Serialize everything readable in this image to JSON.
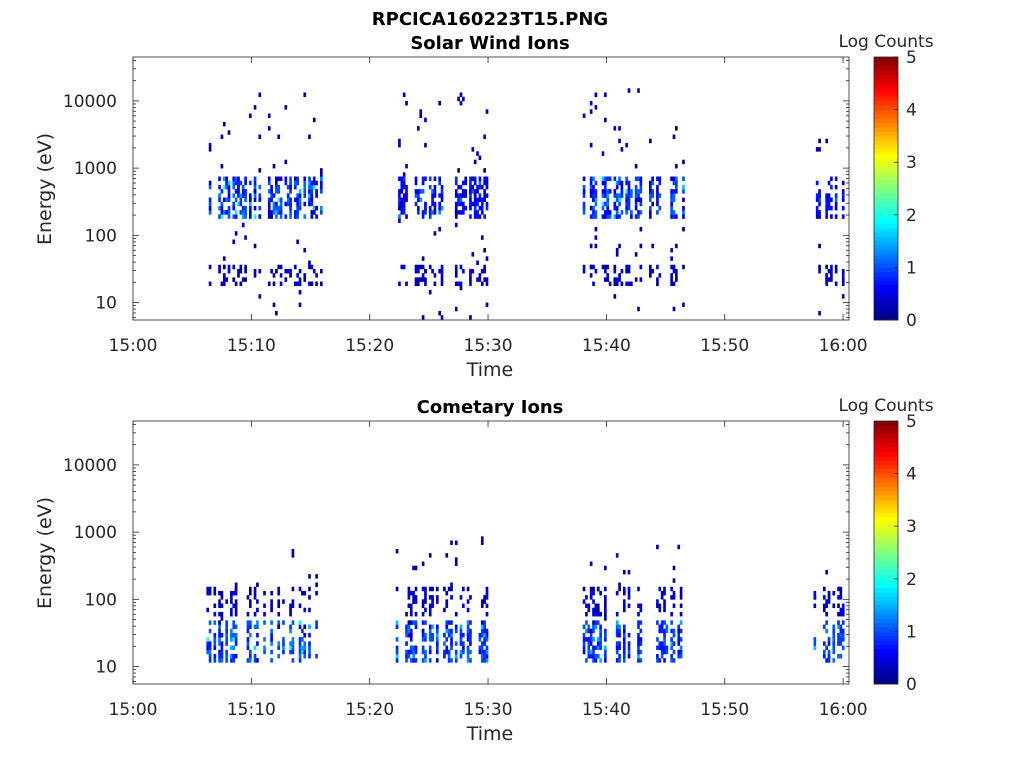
{
  "figure_title": "RPCICA160223T15.PNG",
  "chart_data": [
    {
      "type": "heatmap",
      "title": "Solar Wind Ions",
      "xlabel": "Time",
      "ylabel": "Energy (eV)",
      "x_ticks": [
        "15:00",
        "15:10",
        "15:20",
        "15:30",
        "15:40",
        "15:50",
        "16:00"
      ],
      "x_range_minutes": [
        0,
        60.5
      ],
      "y_ticks": [
        "10",
        "100",
        "1000",
        "10000"
      ],
      "y_scale": "log",
      "y_range": [
        5.5,
        45000
      ],
      "colorbar": {
        "label": "Log Counts",
        "ticks": [
          "0",
          "1",
          "2",
          "3",
          "4",
          "5"
        ],
        "range": [
          0,
          5
        ],
        "colormap": "jet"
      },
      "bursts": [
        {
          "t": [
            6.2,
            15.8
          ],
          "core_energy": [
            200,
            700
          ],
          "core_level": [
            0.4,
            2.1
          ],
          "sparse_energy": [
            6,
            12000
          ],
          "low_energy": [
            20,
            35
          ]
        },
        {
          "t": [
            22,
            29.9
          ],
          "core_energy": [
            200,
            700
          ],
          "core_level": [
            0.4,
            1.4
          ],
          "sparse_energy": [
            6,
            12000
          ],
          "low_energy": [
            20,
            35
          ]
        },
        {
          "t": [
            38,
            46.8
          ],
          "core_energy": [
            200,
            700
          ],
          "core_level": [
            0.4,
            2.0
          ],
          "sparse_energy": [
            6,
            15000
          ],
          "low_energy": [
            20,
            35
          ]
        },
        {
          "t": [
            57.5,
            60.5
          ],
          "core_energy": [
            200,
            700
          ],
          "core_level": [
            0.4,
            1.2
          ],
          "sparse_energy": [
            6,
            6000
          ],
          "low_energy": [
            20,
            35
          ]
        }
      ]
    },
    {
      "type": "heatmap",
      "title": "Cometary Ions",
      "xlabel": "Time",
      "ylabel": "Energy (eV)",
      "x_ticks": [
        "15:00",
        "15:10",
        "15:20",
        "15:30",
        "15:40",
        "15:50",
        "16:00"
      ],
      "x_range_minutes": [
        0,
        60.5
      ],
      "y_ticks": [
        "10",
        "100",
        "1000",
        "10000"
      ],
      "y_scale": "log",
      "y_range": [
        5.5,
        45000
      ],
      "colorbar": {
        "label": "Log Counts",
        "ticks": [
          "0",
          "1",
          "2",
          "3",
          "4",
          "5"
        ],
        "range": [
          0,
          5
        ],
        "colormap": "jet"
      },
      "bursts": [
        {
          "t": [
            6.2,
            15.5
          ],
          "core_energy": [
            12,
            45
          ],
          "core_level": [
            0.6,
            2.1
          ],
          "sparse_energy": [
            30,
            600
          ],
          "low_energy": [
            60,
            150
          ]
        },
        {
          "t": [
            22,
            30.5
          ],
          "core_energy": [
            12,
            45
          ],
          "core_level": [
            0.6,
            1.7
          ],
          "sparse_energy": [
            30,
            800
          ],
          "low_energy": [
            60,
            150
          ]
        },
        {
          "t": [
            38,
            46.8
          ],
          "core_energy": [
            12,
            45
          ],
          "core_level": [
            0.6,
            1.6
          ],
          "sparse_energy": [
            30,
            600
          ],
          "low_energy": [
            60,
            150
          ]
        },
        {
          "t": [
            57.5,
            60.5
          ],
          "core_energy": [
            12,
            45
          ],
          "core_level": [
            0.6,
            1.6
          ],
          "sparse_energy": [
            30,
            500
          ],
          "low_energy": [
            60,
            150
          ]
        }
      ]
    }
  ]
}
